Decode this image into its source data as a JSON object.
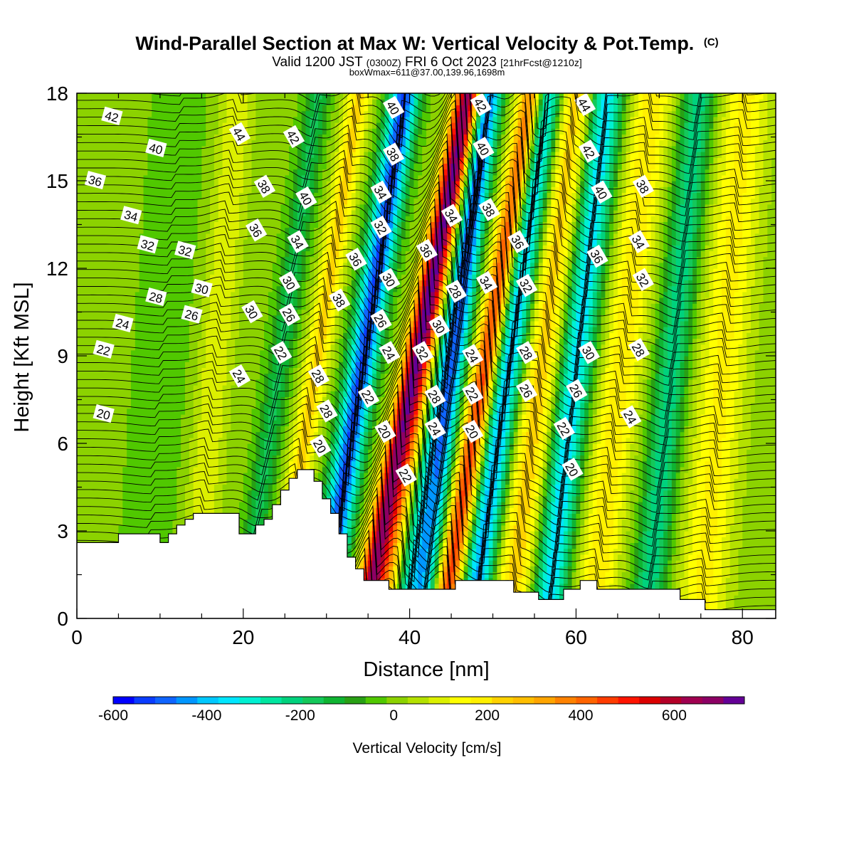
{
  "title": {
    "main": "Wind-Parallel Section at Max W: Vertical Velocity & Pot.Temp.",
    "main_suffix": "(C)",
    "line2_a": "Valid 1200 JST",
    "line2_b": "(0300Z)",
    "line2_c": "FRI 6 Oct 2023",
    "line2_d": "[21hrFcst@1210z]",
    "line3": "boxWmax=611@37.00,139.96,1698m"
  },
  "chart_data": {
    "type": "heatmap",
    "xlabel": "Distance [nm]",
    "ylabel": "Height [Kft MSL]",
    "xlim": [
      0,
      84
    ],
    "ylim": [
      0,
      18
    ],
    "x_ticks": [
      0,
      20,
      40,
      60,
      80
    ],
    "y_ticks": [
      0,
      3,
      6,
      9,
      12,
      15,
      18
    ],
    "colorbar": {
      "title": "Vertical Velocity [cm/s]",
      "range": [
        -600,
        750
      ],
      "tick_values": [
        -600,
        -400,
        -200,
        0,
        200,
        400,
        600
      ],
      "tick_labels": [
        "-600",
        "-400",
        "-200",
        "0",
        "200",
        "400",
        "600"
      ],
      "colors": [
        "#0000ff",
        "#0a3cff",
        "#0f64ff",
        "#0096ff",
        "#00c8ff",
        "#00e6ff",
        "#00f0d2",
        "#00e6a0",
        "#00d27d",
        "#14c85a",
        "#0fb432",
        "#28a014",
        "#50c800",
        "#8cd200",
        "#b4e100",
        "#dcf000",
        "#ffff00",
        "#fff000",
        "#ffd200",
        "#ffbe00",
        "#ffa500",
        "#ff8200",
        "#ff6400",
        "#ff3c00",
        "#ff1400",
        "#dc0000",
        "#b40028",
        "#a00050",
        "#8c0064",
        "#640096"
      ]
    },
    "velocity_bands": [
      {
        "center_x_at_0kft": 34.5,
        "tilt": 0.7,
        "width": 1.6,
        "value": 620
      },
      {
        "center_x_at_0kft": 37.5,
        "tilt": 0.6,
        "width": 2.0,
        "value": 360
      },
      {
        "center_x_at_0kft": 44.0,
        "tilt": 0.6,
        "width": 1.6,
        "value": 480
      },
      {
        "center_x_at_0kft": 29.5,
        "tilt": 0.55,
        "width": 1.8,
        "value": -520
      },
      {
        "center_x_at_0kft": 39.0,
        "tilt": 0.55,
        "width": 1.8,
        "value": -480
      },
      {
        "center_x_at_0kft": 47.5,
        "tilt": 0.5,
        "width": 1.8,
        "value": -440
      },
      {
        "center_x_at_0kft": 41.5,
        "tilt": 0.45,
        "width": 1.5,
        "value": -320
      },
      {
        "center_x_at_0kft": 56.5,
        "tilt": 0.4,
        "width": 2.0,
        "value": -380
      },
      {
        "center_x_at_0kft": 52.0,
        "tilt": 0.45,
        "width": 2.3,
        "value": 240
      },
      {
        "center_x_at_0kft": 62.0,
        "tilt": 0.4,
        "width": 2.5,
        "value": 200
      },
      {
        "center_x_at_0kft": 68.5,
        "tilt": 0.35,
        "width": 2.0,
        "value": -230
      },
      {
        "center_x_at_0kft": 75.0,
        "tilt": 0.3,
        "width": 3.0,
        "value": 180
      },
      {
        "center_x_at_0kft": 24.0,
        "tilt": 0.55,
        "width": 1.5,
        "value": 230
      },
      {
        "center_x_at_0kft": 20.0,
        "tilt": 0.5,
        "width": 1.5,
        "value": -160
      },
      {
        "center_x_at_0kft": 14.0,
        "tilt": 0.3,
        "width": 2.0,
        "value": 120
      },
      {
        "center_x_at_0kft": 8.0,
        "tilt": 0.25,
        "width": 3.0,
        "value": -60
      }
    ],
    "terrain": {
      "x": [
        0,
        5,
        5,
        10,
        10,
        11,
        11,
        12,
        12,
        13,
        13,
        14,
        14,
        19.5,
        19.5,
        21.5,
        21.5,
        22.5,
        22.5,
        23.5,
        23.5,
        24.5,
        24.5,
        25.5,
        25.5,
        26.5,
        26.5,
        28.5,
        28.5,
        29.5,
        29.5,
        30.5,
        30.5,
        31.5,
        31.5,
        32.5,
        32.5,
        33.5,
        33.5,
        34.5,
        34.5,
        37.5,
        37.5,
        45.5,
        45.5,
        52.5,
        52.5,
        55.5,
        55.5,
        58.5,
        58.5,
        60.5,
        60.5,
        62.5,
        62.5,
        72.5,
        72.5,
        75.5,
        75.5,
        84
      ],
      "kft": [
        2.6,
        2.6,
        2.9,
        2.9,
        2.6,
        2.6,
        2.9,
        2.9,
        3.2,
        3.2,
        3.4,
        3.4,
        3.6,
        3.6,
        2.9,
        2.9,
        3.2,
        3.2,
        3.4,
        3.4,
        3.9,
        3.9,
        4.4,
        4.4,
        4.8,
        4.8,
        5.1,
        5.1,
        4.7,
        4.7,
        4.1,
        4.1,
        3.6,
        3.6,
        2.9,
        2.9,
        2.1,
        2.1,
        1.7,
        1.7,
        1.3,
        1.3,
        1.0,
        1.0,
        1.3,
        1.3,
        0.9,
        0.9,
        0.65,
        0.65,
        1.0,
        1.0,
        1.3,
        1.3,
        1.0,
        1.0,
        0.65,
        0.65,
        0.3,
        0.3
      ]
    },
    "theta_contour_labels": [
      {
        "x": 4.2,
        "kft": 17.2,
        "text": "42"
      },
      {
        "x": 9.5,
        "kft": 16.1,
        "text": "40"
      },
      {
        "x": 2.2,
        "kft": 15.0,
        "text": "36"
      },
      {
        "x": 6.5,
        "kft": 13.8,
        "text": "34"
      },
      {
        "x": 8.5,
        "kft": 12.8,
        "text": "32"
      },
      {
        "x": 13.0,
        "kft": 12.6,
        "text": "32"
      },
      {
        "x": 15.0,
        "kft": 11.3,
        "text": "30"
      },
      {
        "x": 9.5,
        "kft": 11.0,
        "text": "28"
      },
      {
        "x": 13.8,
        "kft": 10.4,
        "text": "26"
      },
      {
        "x": 5.5,
        "kft": 10.1,
        "text": "24"
      },
      {
        "x": 3.2,
        "kft": 9.2,
        "text": "22"
      },
      {
        "x": 3.2,
        "kft": 7.0,
        "text": "20"
      },
      {
        "x": 19.5,
        "kft": 16.6,
        "text": "44"
      },
      {
        "x": 26.0,
        "kft": 16.5,
        "text": "42"
      },
      {
        "x": 22.5,
        "kft": 14.8,
        "text": "38"
      },
      {
        "x": 27.5,
        "kft": 14.4,
        "text": "40"
      },
      {
        "x": 21.5,
        "kft": 13.3,
        "text": "36"
      },
      {
        "x": 26.5,
        "kft": 12.9,
        "text": "34"
      },
      {
        "x": 25.5,
        "kft": 11.5,
        "text": "30"
      },
      {
        "x": 21.0,
        "kft": 10.5,
        "text": "30"
      },
      {
        "x": 25.5,
        "kft": 10.4,
        "text": "26"
      },
      {
        "x": 19.5,
        "kft": 8.3,
        "text": "24"
      },
      {
        "x": 24.5,
        "kft": 9.1,
        "text": "22"
      },
      {
        "x": 31.5,
        "kft": 10.9,
        "text": "38"
      },
      {
        "x": 29.0,
        "kft": 8.3,
        "text": "28"
      },
      {
        "x": 30.0,
        "kft": 7.1,
        "text": "28"
      },
      {
        "x": 29.2,
        "kft": 5.9,
        "text": "20"
      },
      {
        "x": 38.0,
        "kft": 17.5,
        "text": "40"
      },
      {
        "x": 38.0,
        "kft": 15.9,
        "text": "38"
      },
      {
        "x": 36.5,
        "kft": 14.6,
        "text": "34"
      },
      {
        "x": 36.5,
        "kft": 13.4,
        "text": "32"
      },
      {
        "x": 33.5,
        "kft": 12.3,
        "text": "36"
      },
      {
        "x": 37.5,
        "kft": 11.6,
        "text": "30"
      },
      {
        "x": 36.5,
        "kft": 10.2,
        "text": "26"
      },
      {
        "x": 37.5,
        "kft": 9.1,
        "text": "24"
      },
      {
        "x": 35.0,
        "kft": 7.6,
        "text": "22"
      },
      {
        "x": 37.0,
        "kft": 6.4,
        "text": "20"
      },
      {
        "x": 39.5,
        "kft": 4.9,
        "text": "22"
      },
      {
        "x": 41.5,
        "kft": 9.1,
        "text": "32"
      },
      {
        "x": 42.0,
        "kft": 12.6,
        "text": "36"
      },
      {
        "x": 45.0,
        "kft": 13.8,
        "text": "34"
      },
      {
        "x": 45.5,
        "kft": 11.2,
        "text": "28"
      },
      {
        "x": 43.5,
        "kft": 10.0,
        "text": "30"
      },
      {
        "x": 43.0,
        "kft": 7.6,
        "text": "28"
      },
      {
        "x": 43.0,
        "kft": 6.5,
        "text": "24"
      },
      {
        "x": 48.5,
        "kft": 17.6,
        "text": "42"
      },
      {
        "x": 48.8,
        "kft": 16.1,
        "text": "40"
      },
      {
        "x": 49.5,
        "kft": 14.0,
        "text": "38"
      },
      {
        "x": 49.2,
        "kft": 11.5,
        "text": "34"
      },
      {
        "x": 47.5,
        "kft": 9.0,
        "text": "24"
      },
      {
        "x": 47.5,
        "kft": 7.7,
        "text": "22"
      },
      {
        "x": 47.5,
        "kft": 6.4,
        "text": "20"
      },
      {
        "x": 53.0,
        "kft": 12.9,
        "text": "36"
      },
      {
        "x": 54.0,
        "kft": 11.4,
        "text": "32"
      },
      {
        "x": 54.0,
        "kft": 9.1,
        "text": "28"
      },
      {
        "x": 54.0,
        "kft": 7.8,
        "text": "26"
      },
      {
        "x": 61.0,
        "kft": 17.6,
        "text": "44"
      },
      {
        "x": 61.5,
        "kft": 16.0,
        "text": "42"
      },
      {
        "x": 63.0,
        "kft": 14.6,
        "text": "40"
      },
      {
        "x": 68.0,
        "kft": 14.8,
        "text": "38"
      },
      {
        "x": 62.5,
        "kft": 12.4,
        "text": "36"
      },
      {
        "x": 67.5,
        "kft": 12.9,
        "text": "34"
      },
      {
        "x": 68.0,
        "kft": 11.6,
        "text": "32"
      },
      {
        "x": 61.5,
        "kft": 9.1,
        "text": "30"
      },
      {
        "x": 67.5,
        "kft": 9.2,
        "text": "28"
      },
      {
        "x": 60.0,
        "kft": 7.8,
        "text": "26"
      },
      {
        "x": 58.5,
        "kft": 6.5,
        "text": "22"
      },
      {
        "x": 66.5,
        "kft": 6.9,
        "text": "24"
      },
      {
        "x": 59.5,
        "kft": 5.1,
        "text": "20"
      }
    ]
  }
}
